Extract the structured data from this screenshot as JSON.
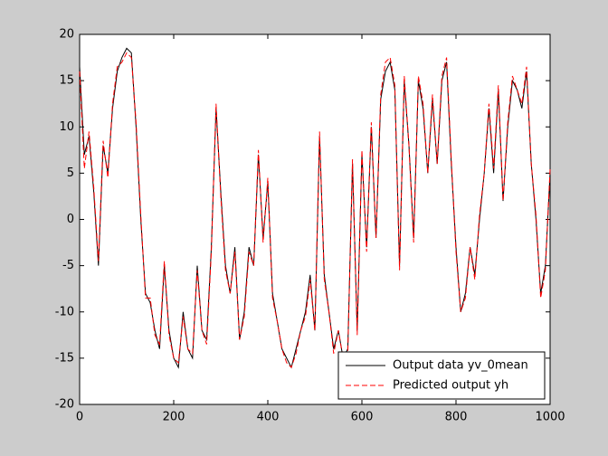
{
  "chart_data": {
    "type": "line",
    "x": [
      0,
      10,
      20,
      30,
      40,
      50,
      60,
      70,
      80,
      90,
      100,
      110,
      120,
      130,
      140,
      150,
      160,
      170,
      180,
      190,
      200,
      210,
      220,
      230,
      240,
      250,
      260,
      270,
      280,
      290,
      300,
      310,
      320,
      330,
      340,
      350,
      360,
      370,
      380,
      390,
      400,
      410,
      420,
      430,
      440,
      450,
      460,
      470,
      480,
      490,
      500,
      510,
      520,
      530,
      540,
      550,
      560,
      570,
      580,
      590,
      600,
      610,
      620,
      630,
      640,
      650,
      660,
      670,
      680,
      690,
      700,
      710,
      720,
      730,
      740,
      750,
      760,
      770,
      780,
      790,
      800,
      810,
      820,
      830,
      840,
      850,
      860,
      870,
      880,
      890,
      900,
      910,
      920,
      930,
      940,
      950,
      960,
      970,
      980,
      990,
      1000
    ],
    "series": [
      {
        "name": "Output data yv_0mean",
        "color": "#000000",
        "dash": false,
        "values": [
          16.5,
          7,
          9,
          3,
          -5,
          8,
          5,
          12,
          16,
          17.5,
          18.5,
          18,
          10,
          0,
          -8,
          -9,
          -12,
          -14,
          -5,
          -12,
          -15,
          -16,
          -10,
          -14,
          -15,
          -5,
          -12,
          -13,
          -3,
          12,
          3,
          -5,
          -8,
          -3,
          -13,
          -10,
          -3,
          -5,
          7,
          -2,
          4,
          -8,
          -11,
          -14,
          -15,
          -16,
          -14,
          -12,
          -10,
          -6,
          -12,
          9,
          -6,
          -10,
          -14,
          -12,
          -15,
          -14,
          6,
          -12,
          7,
          -3,
          10,
          -2,
          13,
          16,
          17,
          14,
          -5,
          15,
          8,
          -2,
          15,
          12,
          5,
          13,
          6,
          15,
          17,
          6,
          -3,
          -10,
          -8,
          -3,
          -6,
          0,
          5,
          12,
          5,
          14,
          2,
          10,
          15,
          14,
          12,
          16,
          6,
          0,
          -8,
          -5,
          5
        ]
      },
      {
        "name": "Predicted output yh",
        "color": "#ff0000",
        "dash": true,
        "values": [
          16,
          5.5,
          9.5,
          3.5,
          -4.5,
          8.5,
          4.5,
          12.5,
          16.5,
          17,
          18,
          17.5,
          10.5,
          0.5,
          -8.5,
          -8.5,
          -12.5,
          -13.5,
          -4.5,
          -12.5,
          -15,
          -15.5,
          -10.5,
          -14,
          -14.5,
          -5.5,
          -12,
          -13.5,
          -3.5,
          12.5,
          2.5,
          -5.5,
          -8,
          -3.5,
          -13,
          -10.5,
          -3.5,
          -5,
          7.5,
          -2.5,
          4.5,
          -8.5,
          -11,
          -14,
          -15.5,
          -16,
          -14.5,
          -12,
          -10.5,
          -6.5,
          -12,
          9.5,
          -6.5,
          -10,
          -14.5,
          -12,
          -15,
          -14.5,
          6.5,
          -12.5,
          7.5,
          -3.5,
          10.5,
          -2,
          13.5,
          17,
          17.5,
          14.5,
          -5.5,
          15.5,
          8,
          -2.5,
          15.5,
          12.5,
          5,
          13.5,
          6,
          15.5,
          17.5,
          6.5,
          -3.5,
          -10,
          -8.5,
          -3,
          -6.5,
          0.5,
          5,
          12.5,
          5.5,
          14.5,
          2,
          10.5,
          15.5,
          14,
          12.5,
          16.5,
          6,
          0.5,
          -8.5,
          -5.5,
          5.5
        ]
      }
    ],
    "xlim": [
      0,
      1000
    ],
    "xticks": [
      0,
      200,
      400,
      600,
      800,
      1000
    ],
    "ylim": [
      -20,
      20
    ],
    "yticks": [
      -20,
      -15,
      -10,
      -5,
      0,
      5,
      10,
      15,
      20
    ],
    "legend": "lower right"
  }
}
